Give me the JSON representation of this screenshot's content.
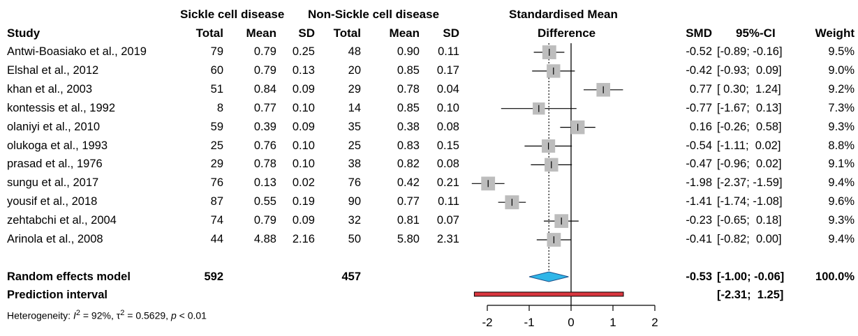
{
  "headers": {
    "group1": "Sickle cell disease",
    "group2": "Non-Sickle cell disease",
    "effect_line1": "Standardised Mean",
    "effect_line2": "Difference",
    "study": "Study",
    "total1": "Total",
    "mean1": "Mean",
    "sd1": "SD",
    "total2": "Total",
    "mean2": "Mean",
    "sd2": "SD",
    "smd": "SMD",
    "ci": "95%-CI",
    "weight": "Weight"
  },
  "summary": {
    "label": "Random effects model",
    "total1": "592",
    "total2": "457",
    "smd": "-0.53",
    "ci": "[-1.00; -0.06]",
    "weight": "100.0%",
    "pi_label": "Prediction interval",
    "pi_ci": "[-2.31;  1.25]",
    "het_prefix": "Heterogeneity: ",
    "het_I": "I",
    "het_I_exp": "2",
    "het_I_val": " = 92%, ",
    "het_tau": "τ",
    "het_tau_exp": "2",
    "het_tau_val": " = 0.5629, ",
    "het_p": "p",
    "het_p_val": " < 0.01"
  },
  "colors": {
    "square": "#bdbdbd",
    "diamond": "#2fb6e8",
    "prediction_bar": "#d9363e"
  },
  "chart_data": {
    "type": "forest",
    "xlim": [
      -2,
      2
    ],
    "xticks": [
      "-2",
      "-1",
      "0",
      "1",
      "2"
    ],
    "reference_line": 0,
    "pooled_line": -0.53,
    "pooled": {
      "smd": -0.53,
      "lower": -1.0,
      "upper": -0.06
    },
    "prediction": {
      "lower": -2.31,
      "upper": 1.25
    },
    "studies": [
      {
        "study": "Antwi-Boasiako et al., 2019",
        "total1": "79",
        "mean1": "0.79",
        "sd1": "0.25",
        "total2": "48",
        "mean2": "0.90",
        "sd2": "0.11",
        "smd": -0.52,
        "lower": -0.89,
        "upper": -0.16,
        "smd_text": "-0.52",
        "ci_text": "[-0.89; -0.16]",
        "weight": 9.5,
        "weight_text": "9.5%"
      },
      {
        "study": "Elshal et al., 2012",
        "total1": "60",
        "mean1": "0.79",
        "sd1": "0.13",
        "total2": "20",
        "mean2": "0.85",
        "sd2": "0.17",
        "smd": -0.42,
        "lower": -0.93,
        "upper": 0.09,
        "smd_text": "-0.42",
        "ci_text": "[-0.93;  0.09]",
        "weight": 9.0,
        "weight_text": "9.0%"
      },
      {
        "study": "khan et al., 2003",
        "total1": "51",
        "mean1": "0.84",
        "sd1": "0.09",
        "total2": "29",
        "mean2": "0.78",
        "sd2": "0.04",
        "smd": 0.77,
        "lower": 0.3,
        "upper": 1.24,
        "smd_text": "0.77",
        "ci_text": "[ 0.30;  1.24]",
        "weight": 9.2,
        "weight_text": "9.2%"
      },
      {
        "study": "kontessis et al., 1992",
        "total1": "8",
        "mean1": "0.77",
        "sd1": "0.10",
        "total2": "14",
        "mean2": "0.85",
        "sd2": "0.10",
        "smd": -0.77,
        "lower": -1.67,
        "upper": 0.13,
        "smd_text": "-0.77",
        "ci_text": "[-1.67;  0.13]",
        "weight": 7.3,
        "weight_text": "7.3%"
      },
      {
        "study": "olaniyi et al., 2010",
        "total1": "59",
        "mean1": "0.39",
        "sd1": "0.09",
        "total2": "35",
        "mean2": "0.38",
        "sd2": "0.08",
        "smd": 0.16,
        "lower": -0.26,
        "upper": 0.58,
        "smd_text": "0.16",
        "ci_text": "[-0.26;  0.58]",
        "weight": 9.3,
        "weight_text": "9.3%"
      },
      {
        "study": "olukoga et al., 1993",
        "total1": "25",
        "mean1": "0.76",
        "sd1": "0.10",
        "total2": "25",
        "mean2": "0.83",
        "sd2": "0.15",
        "smd": -0.54,
        "lower": -1.11,
        "upper": 0.02,
        "smd_text": "-0.54",
        "ci_text": "[-1.11;  0.02]",
        "weight": 8.8,
        "weight_text": "8.8%"
      },
      {
        "study": "prasad et al., 1976",
        "total1": "29",
        "mean1": "0.78",
        "sd1": "0.10",
        "total2": "38",
        "mean2": "0.82",
        "sd2": "0.08",
        "smd": -0.47,
        "lower": -0.96,
        "upper": 0.02,
        "smd_text": "-0.47",
        "ci_text": "[-0.96;  0.02]",
        "weight": 9.1,
        "weight_text": "9.1%"
      },
      {
        "study": "sungu et al., 2017",
        "total1": "76",
        "mean1": "0.13",
        "sd1": "0.02",
        "total2": "76",
        "mean2": "0.42",
        "sd2": "0.21",
        "smd": -1.98,
        "lower": -2.37,
        "upper": -1.59,
        "smd_text": "-1.98",
        "ci_text": "[-2.37; -1.59]",
        "weight": 9.4,
        "weight_text": "9.4%"
      },
      {
        "study": "yousif et al., 2018",
        "total1": "87",
        "mean1": "0.55",
        "sd1": "0.19",
        "total2": "90",
        "mean2": "0.77",
        "sd2": "0.11",
        "smd": -1.41,
        "lower": -1.74,
        "upper": -1.08,
        "smd_text": "-1.41",
        "ci_text": "[-1.74; -1.08]",
        "weight": 9.6,
        "weight_text": "9.6%"
      },
      {
        "study": "zehtabchi et al., 2004",
        "total1": "74",
        "mean1": "0.79",
        "sd1": "0.09",
        "total2": "32",
        "mean2": "0.81",
        "sd2": "0.07",
        "smd": -0.23,
        "lower": -0.65,
        "upper": 0.18,
        "smd_text": "-0.23",
        "ci_text": "[-0.65;  0.18]",
        "weight": 9.3,
        "weight_text": "9.3%"
      },
      {
        "study": "Arinola et al., 2008",
        "total1": "44",
        "mean1": "4.88",
        "sd1": "2.16",
        "total2": "50",
        "mean2": "5.80",
        "sd2": "2.31",
        "smd": -0.41,
        "lower": -0.82,
        "upper": 0.0,
        "smd_text": "-0.41",
        "ci_text": "[-0.82;  0.00]",
        "weight": 9.4,
        "weight_text": "9.4%"
      }
    ]
  }
}
